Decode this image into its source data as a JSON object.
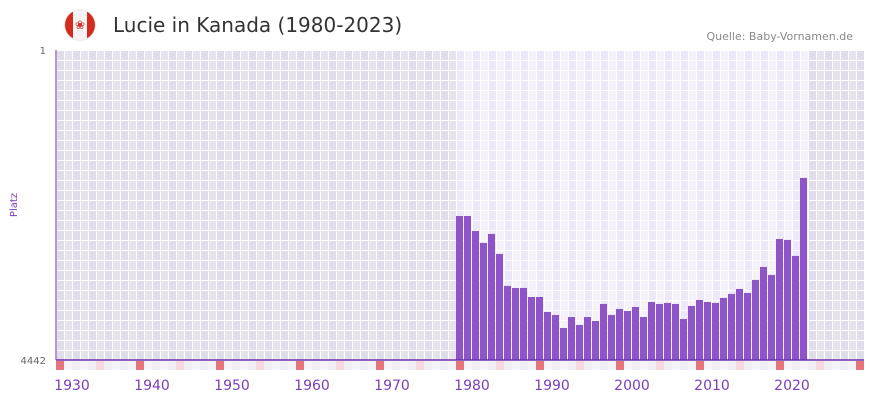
{
  "header": {
    "title": "Lucie in Kanada (1980-2023)",
    "source": "Quelle: Baby-Vornamen.de",
    "flag_icon": "canada-flag-icon"
  },
  "colors": {
    "bar": "#8e55c8",
    "axis": "#6a2fb0",
    "label": "#7a3fb8",
    "marker": "#e8747c",
    "marker_light": "#f5d8e0"
  },
  "chart_data": {
    "type": "bar",
    "title": "Lucie in Kanada (1980-2023)",
    "xlabel": "",
    "ylabel": "Platz",
    "ylim": [
      1,
      4442
    ],
    "y_inverted": true,
    "y_ticks": [
      "1",
      "4442"
    ],
    "x_ticks": [
      1930,
      1940,
      1950,
      1960,
      1970,
      1980,
      1990,
      2000,
      2010,
      2020
    ],
    "xlim": [
      1930,
      2030
    ],
    "x": [
      1980,
      1981,
      1982,
      1983,
      1984,
      1985,
      1986,
      1987,
      1988,
      1989,
      1990,
      1991,
      1992,
      1993,
      1994,
      1995,
      1996,
      1997,
      1998,
      1999,
      2000,
      2001,
      2002,
      2003,
      2004,
      2005,
      2006,
      2007,
      2008,
      2009,
      2010,
      2011,
      2012,
      2013,
      2014,
      2015,
      2016,
      2017,
      2018,
      2019,
      2020,
      2021,
      2022,
      2023
    ],
    "values": [
      2379,
      2379,
      2593,
      2765,
      2636,
      2922,
      3381,
      3410,
      3410,
      3539,
      3539,
      3754,
      3797,
      3983,
      3826,
      3940,
      3826,
      3883,
      3639,
      3797,
      3711,
      3740,
      3682,
      3826,
      3611,
      3639,
      3625,
      3639,
      3855,
      3668,
      3582,
      3611,
      3625,
      3553,
      3496,
      3424,
      3482,
      3295,
      3109,
      3224,
      2708,
      2722,
      2951,
      1834
    ],
    "grid": true
  }
}
